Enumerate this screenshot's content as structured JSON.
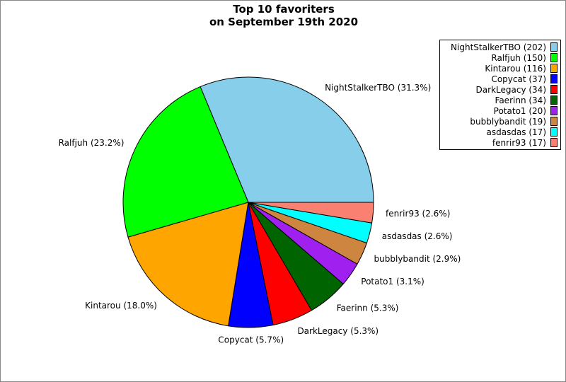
{
  "chart_data": {
    "type": "pie",
    "title": "Top 10 favoriters",
    "subtitle": "on September 19th 2020",
    "legend_position": "top-right",
    "start_angle_deg": 0,
    "direction": "counterclockwise",
    "slices": [
      {
        "name": "NightStalkerTBO",
        "value": 202,
        "percent_label": "NightStalkerTBO (31.3%)",
        "legend_label": "NightStalkerTBO (202)",
        "color": "#87ceeb"
      },
      {
        "name": "Ralfjuh",
        "value": 150,
        "percent_label": "Ralfjuh (23.2%)",
        "legend_label": "Ralfjuh (150)",
        "color": "#00ff00"
      },
      {
        "name": "Kintarou",
        "value": 116,
        "percent_label": "Kintarou (18.0%)",
        "legend_label": "Kintarou (116)",
        "color": "#ffa500"
      },
      {
        "name": "Copycat",
        "value": 37,
        "percent_label": "Copycat (5.7%)",
        "legend_label": "Copycat (37)",
        "color": "#0000ff"
      },
      {
        "name": "DarkLegacy",
        "value": 34,
        "percent_label": "DarkLegacy (5.3%)",
        "legend_label": "DarkLegacy (34)",
        "color": "#ff0000"
      },
      {
        "name": "Faerinn",
        "value": 34,
        "percent_label": "Faerinn (5.3%)",
        "legend_label": "Faerinn (34)",
        "color": "#006400"
      },
      {
        "name": "Potato1",
        "value": 20,
        "percent_label": "Potato1 (3.1%)",
        "legend_label": "Potato1 (20)",
        "color": "#a020f0"
      },
      {
        "name": "bubblybandit",
        "value": 19,
        "percent_label": "bubblybandit (2.9%)",
        "legend_label": "bubblybandit (19)",
        "color": "#cd853f"
      },
      {
        "name": "asdasdas",
        "value": 17,
        "percent_label": "asdasdas (2.6%)",
        "legend_label": "asdasdas (17)",
        "color": "#00ffff"
      },
      {
        "name": "fenrir93",
        "value": 17,
        "percent_label": "fenrir93 (2.6%)",
        "legend_label": "fenrir93 (17)",
        "color": "#fa8072"
      }
    ]
  }
}
